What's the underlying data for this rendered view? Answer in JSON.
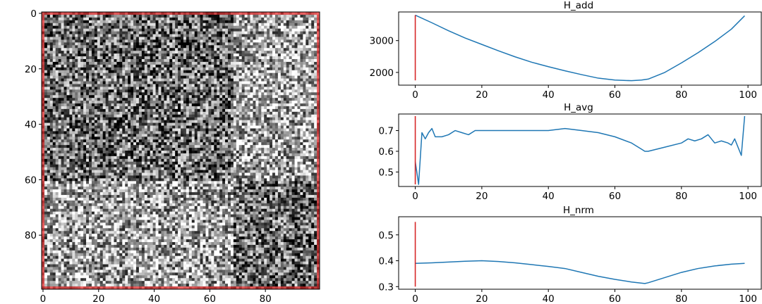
{
  "chart_data": [
    {
      "type": "heatmap",
      "title": "",
      "xlabel": "",
      "ylabel": "",
      "colormap": "gray",
      "border_color": "#b22222",
      "xlim": [
        0,
        99
      ],
      "ylim": [
        99,
        0
      ],
      "xticks": [
        0,
        20,
        40,
        60,
        80
      ],
      "yticks": [
        0,
        20,
        40,
        60,
        80
      ],
      "regions": [
        {
          "rows": [
            0,
            60
          ],
          "cols": [
            0,
            68
          ],
          "mean_intensity": 0.42
        },
        {
          "rows": [
            0,
            60
          ],
          "cols": [
            68,
            99
          ],
          "mean_intensity": 0.66
        },
        {
          "rows": [
            60,
            99
          ],
          "cols": [
            0,
            68
          ],
          "mean_intensity": 0.64
        },
        {
          "rows": [
            60,
            99
          ],
          "cols": [
            68,
            99
          ],
          "mean_intensity": 0.42
        }
      ]
    },
    {
      "type": "line",
      "title": "H_add",
      "xlim": [
        -5,
        104
      ],
      "ylim": [
        1600,
        3900
      ],
      "xticks": [
        0,
        20,
        40,
        60,
        80,
        100
      ],
      "yticks": [
        2000,
        3000
      ],
      "vline": {
        "x": 0,
        "ymin": 1750,
        "ymax": 3800,
        "color": "#d62728"
      },
      "series": [
        {
          "x": [
            0,
            5,
            10,
            15,
            20,
            25,
            30,
            35,
            40,
            45,
            50,
            55,
            60,
            65,
            68,
            70,
            75,
            80,
            85,
            90,
            95,
            99
          ],
          "values": [
            3800,
            3560,
            3310,
            3080,
            2880,
            2680,
            2490,
            2320,
            2180,
            2050,
            1930,
            1820,
            1760,
            1740,
            1760,
            1790,
            2000,
            2300,
            2620,
            2970,
            3360,
            3780
          ]
        }
      ]
    },
    {
      "type": "line",
      "title": "H_avg",
      "xlim": [
        -5,
        104
      ],
      "ylim": [
        0.43,
        0.78
      ],
      "xticks": [
        0,
        20,
        40,
        60,
        80,
        100
      ],
      "yticks": [
        0.5,
        0.6,
        0.7
      ],
      "vline": {
        "x": 0,
        "ymin": 0.44,
        "ymax": 0.77,
        "color": "#d62728"
      },
      "series": [
        {
          "x": [
            0,
            1,
            2,
            3,
            4,
            5,
            6,
            8,
            10,
            12,
            14,
            16,
            18,
            20,
            25,
            30,
            35,
            40,
            45,
            50,
            55,
            60,
            65,
            68,
            69,
            70,
            75,
            80,
            82,
            84,
            86,
            88,
            90,
            92,
            94,
            95,
            96,
            98,
            99
          ],
          "values": [
            0.55,
            0.44,
            0.69,
            0.66,
            0.69,
            0.71,
            0.67,
            0.67,
            0.68,
            0.7,
            0.69,
            0.68,
            0.7,
            0.7,
            0.7,
            0.7,
            0.7,
            0.7,
            0.71,
            0.7,
            0.69,
            0.67,
            0.64,
            0.61,
            0.6,
            0.6,
            0.62,
            0.64,
            0.66,
            0.65,
            0.66,
            0.68,
            0.64,
            0.65,
            0.64,
            0.63,
            0.66,
            0.58,
            0.77
          ]
        }
      ]
    },
    {
      "type": "line",
      "title": "H_nrm",
      "xlim": [
        -5,
        104
      ],
      "ylim": [
        0.29,
        0.57
      ],
      "xticks": [
        0,
        20,
        40,
        60,
        80,
        100
      ],
      "yticks": [
        0.3,
        0.4,
        0.5
      ],
      "vline": {
        "x": 0,
        "ymin": 0.3,
        "ymax": 0.55,
        "color": "#d62728"
      },
      "series": [
        {
          "x": [
            0,
            5,
            10,
            15,
            20,
            25,
            30,
            35,
            40,
            45,
            50,
            55,
            60,
            65,
            69,
            70,
            75,
            80,
            85,
            90,
            95,
            99
          ],
          "values": [
            0.39,
            0.392,
            0.395,
            0.398,
            0.4,
            0.397,
            0.392,
            0.385,
            0.378,
            0.37,
            0.355,
            0.34,
            0.328,
            0.318,
            0.312,
            0.315,
            0.335,
            0.355,
            0.37,
            0.38,
            0.387,
            0.39
          ]
        }
      ]
    }
  ]
}
